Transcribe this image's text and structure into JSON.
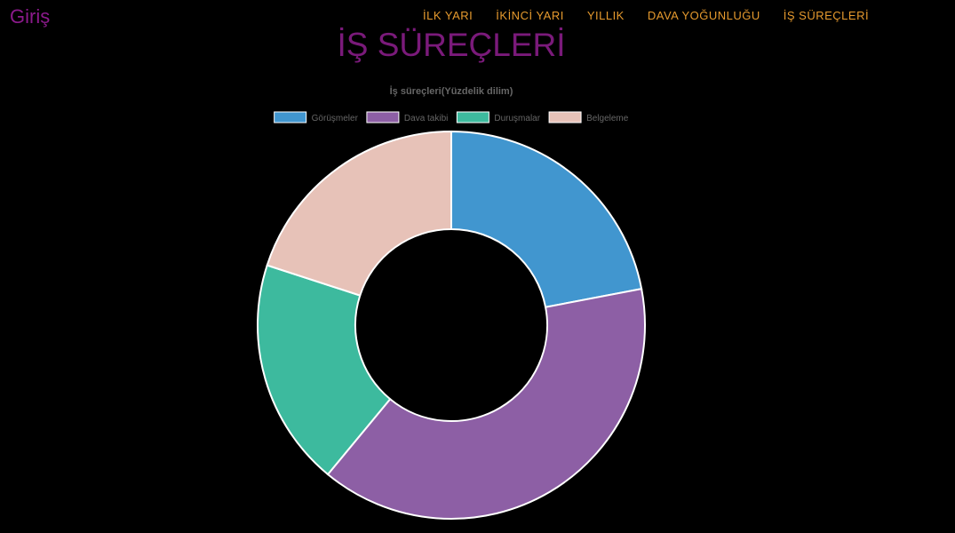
{
  "header": {
    "brand": "Giriş",
    "nav": [
      {
        "label": "İLK YARI"
      },
      {
        "label": "İKİNCİ YARI"
      },
      {
        "label": "YILLIK"
      },
      {
        "label": "DAVA YOĞUNLUĞU"
      },
      {
        "label": "İŞ SÜREÇLERİ"
      }
    ]
  },
  "page": {
    "title": "İŞ SÜREÇLERİ"
  },
  "chart_data": {
    "type": "pie",
    "variant": "doughnut",
    "title": "İş süreçleri(Yüzdelik dilim)",
    "legend_position": "top",
    "categories": [
      "Görüşmeler",
      "Dava takibi",
      "Duruşmalar",
      "Belgeleme"
    ],
    "values": [
      22,
      39,
      19,
      20
    ],
    "colors": [
      "#4196cf",
      "#8d5fa5",
      "#3dba9e",
      "#e7c2b8"
    ],
    "border_color": "#ffffff"
  }
}
